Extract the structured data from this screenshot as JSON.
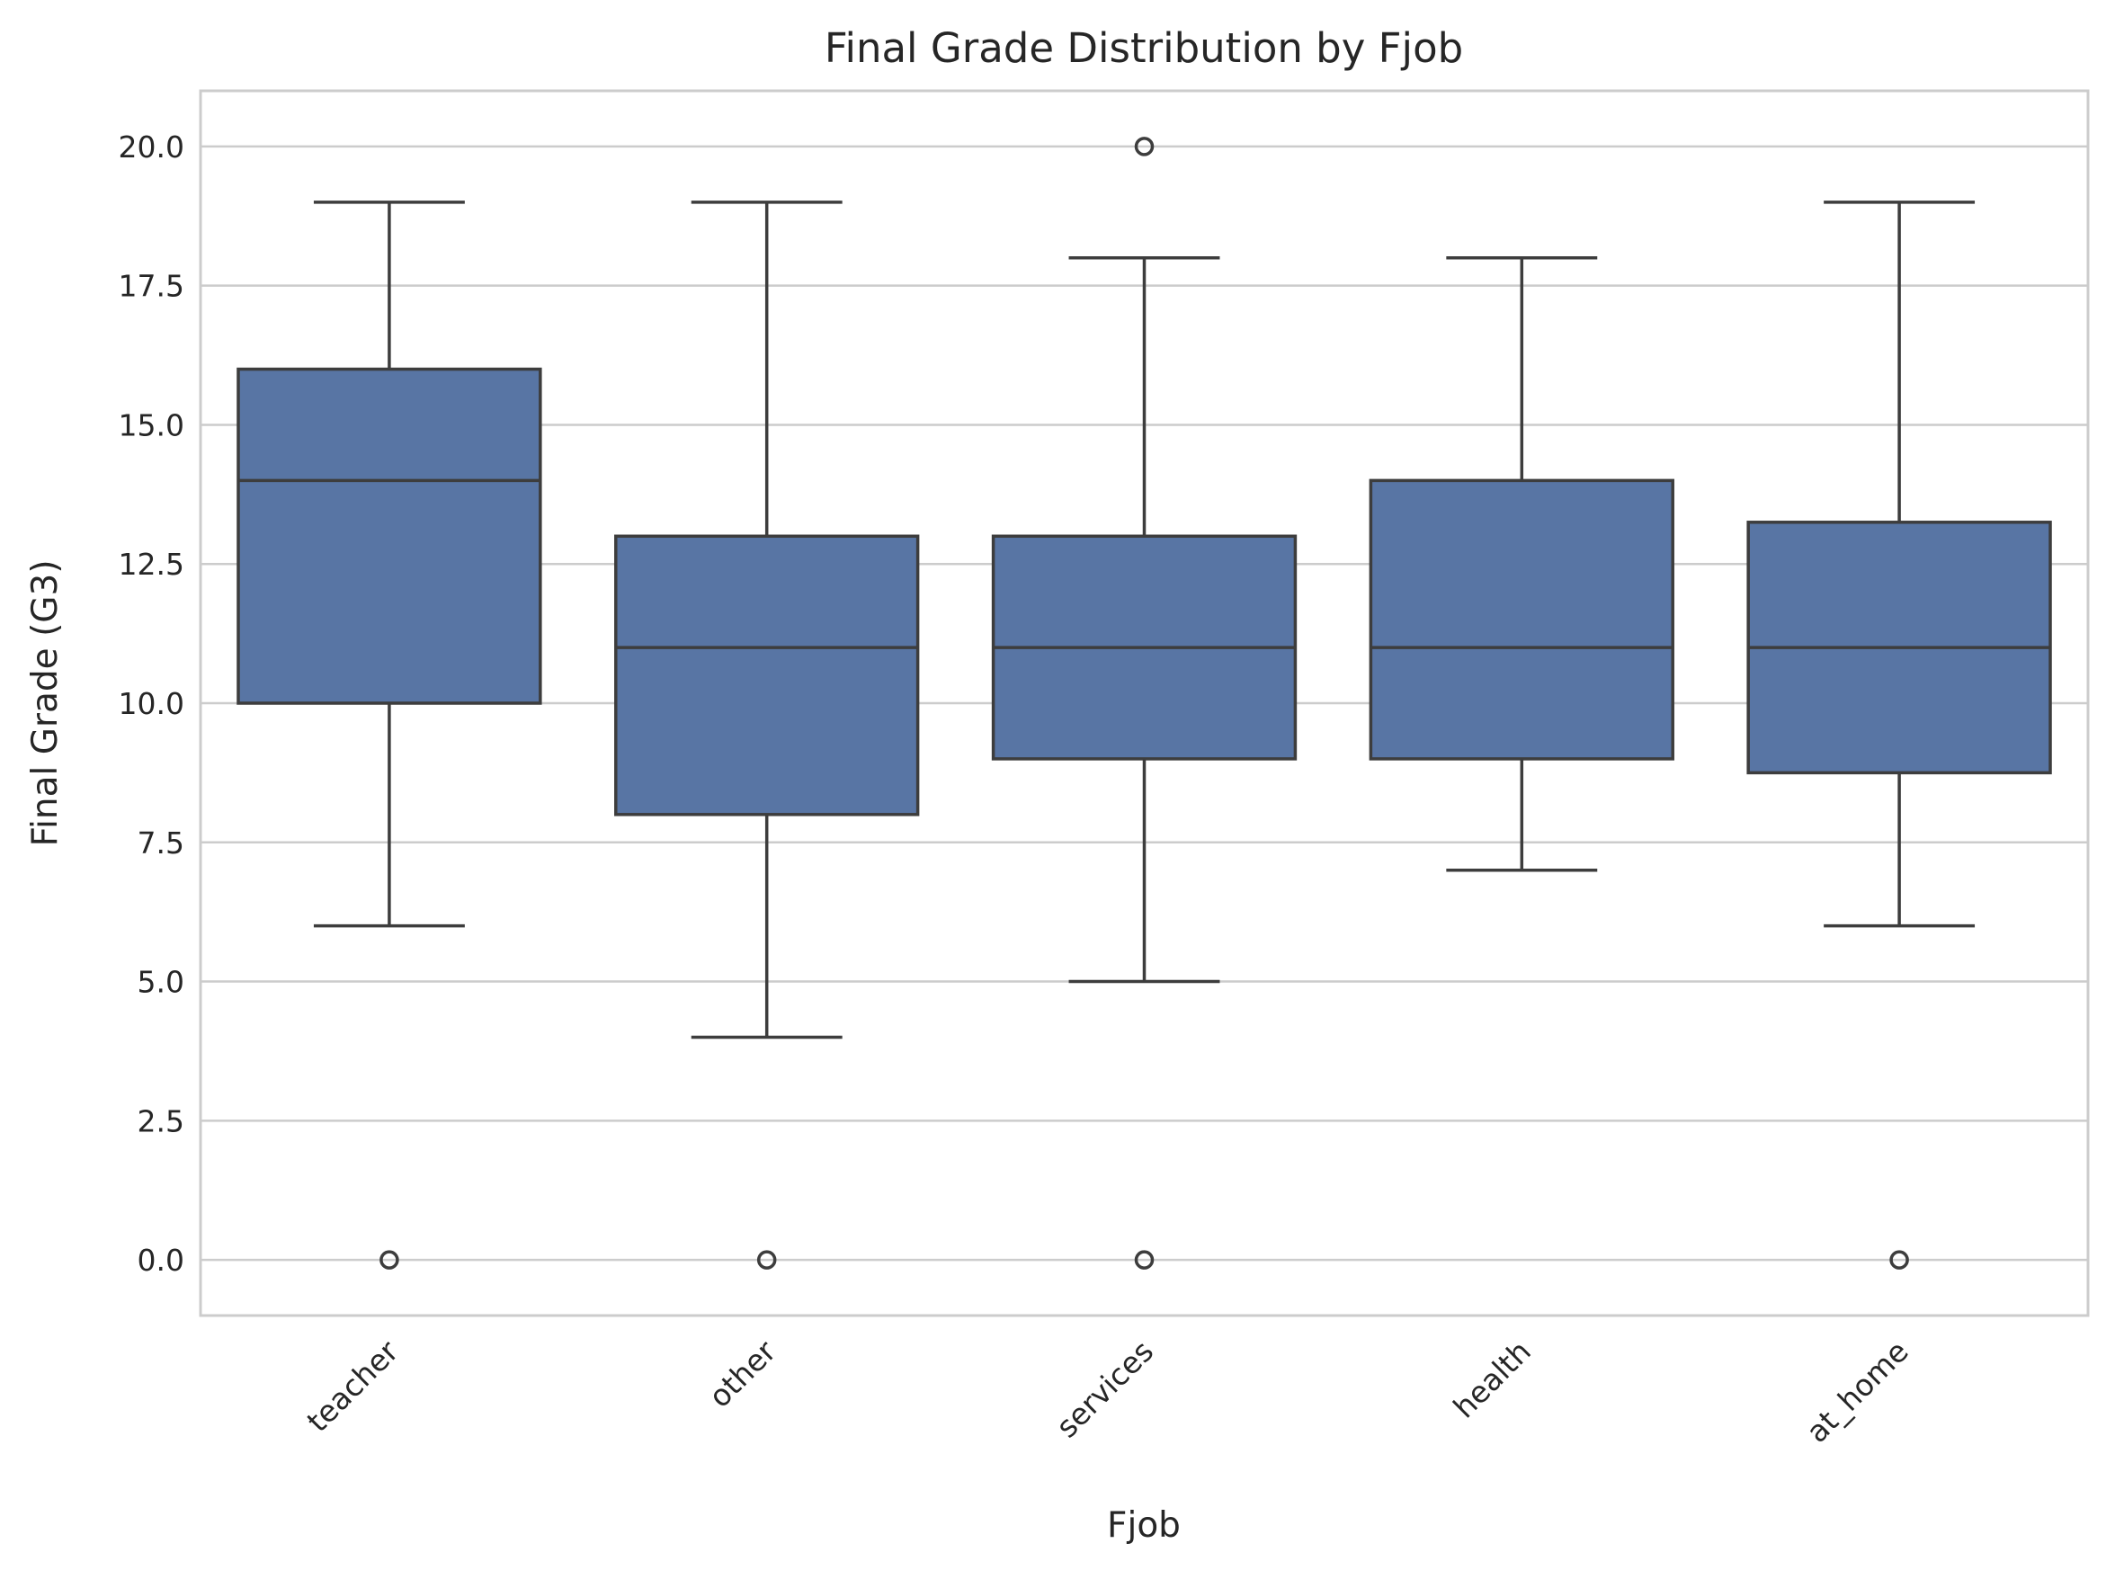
{
  "chart_data": {
    "type": "box",
    "title": "Final Grade Distribution by Fjob",
    "xlabel": "Fjob",
    "ylabel": "Final Grade (G3)",
    "categories": [
      "teacher",
      "other",
      "services",
      "health",
      "at_home"
    ],
    "ylim": [
      -1,
      21
    ],
    "yticks": [
      0.0,
      2.5,
      5.0,
      7.5,
      10.0,
      12.5,
      15.0,
      17.5,
      20.0
    ],
    "ytick_labels": [
      "0.0",
      "2.5",
      "5.0",
      "7.5",
      "10.0",
      "12.5",
      "15.0",
      "17.5",
      "20.0"
    ],
    "grid": true,
    "box_color": "#5875a4",
    "line_color": "#3d3d3d",
    "boxes": [
      {
        "category": "teacher",
        "whisker_low": 6,
        "q1": 10,
        "median": 14,
        "q3": 16,
        "whisker_high": 19,
        "outliers": [
          0
        ]
      },
      {
        "category": "other",
        "whisker_low": 4,
        "q1": 8,
        "median": 11,
        "q3": 13,
        "whisker_high": 19,
        "outliers": [
          0
        ]
      },
      {
        "category": "services",
        "whisker_low": 5,
        "q1": 9,
        "median": 11,
        "q3": 13,
        "whisker_high": 18,
        "outliers": [
          0,
          20
        ]
      },
      {
        "category": "health",
        "whisker_low": 7,
        "q1": 9,
        "median": 11,
        "q3": 14,
        "whisker_high": 18,
        "outliers": []
      },
      {
        "category": "at_home",
        "whisker_low": 6,
        "q1": 8.75,
        "median": 11,
        "q3": 13.25,
        "whisker_high": 19,
        "outliers": [
          0
        ]
      }
    ]
  }
}
